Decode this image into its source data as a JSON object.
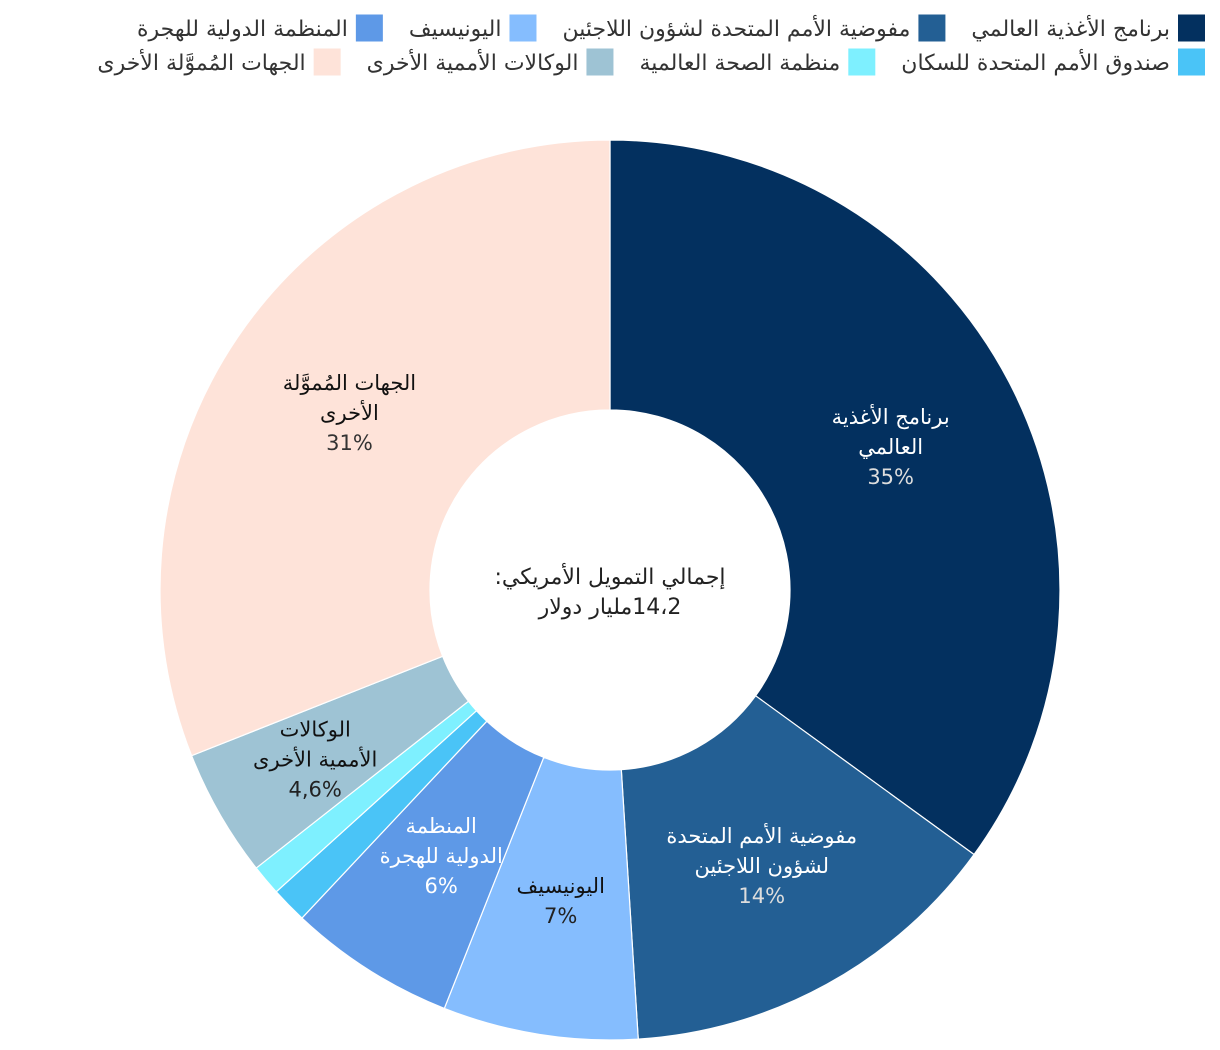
{
  "chart_data": {
    "type": "pie",
    "donut": true,
    "center_label": {
      "line1": "إجمالي التمويل الأمريكي:",
      "line2": "14،2مليار دولار"
    },
    "legend_placement": "top",
    "slices": [
      {
        "key": "wfp",
        "name": "برنامج الأغذية العالمي",
        "value": 35,
        "label_lines": [
          "برنامج الأغذية",
          "العالمي"
        ],
        "pct_label": "35%",
        "color": "#03305f",
        "text_color": "#ffffff",
        "pct_color": "#dddddd"
      },
      {
        "key": "unhcr",
        "name": "مفوضية الأمم المتحدة لشؤون اللاجئين",
        "value": 14,
        "label_lines": [
          "مفوضية الأمم المتحدة",
          "لشؤون اللاجئين"
        ],
        "pct_label": "14%",
        "color": "#235f94",
        "text_color": "#ffffff",
        "pct_color": "#dddddd"
      },
      {
        "key": "unicef",
        "name": "اليونيسيف",
        "value": 7,
        "label_lines": [
          "اليونيسيف"
        ],
        "pct_label": "7%",
        "color": "#85bdfe",
        "text_color": "#111111",
        "pct_color": "#222222"
      },
      {
        "key": "iom",
        "name": "المنظمة الدولية للهجرة",
        "value": 6,
        "label_lines": [
          "المنظمة",
          "الدولية للهجرة"
        ],
        "pct_label": "6%",
        "color": "#5e99e7",
        "text_color": "#ffffff",
        "pct_color": "#ffffff"
      },
      {
        "key": "unfpa",
        "name": "صندوق الأمم المتحدة للسكان",
        "value": 1.3,
        "label_lines": [],
        "pct_label": "",
        "color": "#4ac4f7",
        "text_color": "#111111",
        "pct_color": "#111111"
      },
      {
        "key": "who",
        "name": "منظمة الصحة العالمية",
        "value": 1.1,
        "label_lines": [],
        "pct_label": "",
        "color": "#7ef0ff",
        "text_color": "#111111",
        "pct_color": "#111111"
      },
      {
        "key": "other_un",
        "name": "الوكالات الأممية الأخرى",
        "value": 4.6,
        "label_lines": [
          "الوكالات",
          "الأممية الأخرى"
        ],
        "pct_label": "4,6%",
        "color": "#9ec3d4",
        "text_color": "#111111",
        "pct_color": "#222222"
      },
      {
        "key": "other",
        "name": "الجهات المُموَّلة الأخرى",
        "value": 31,
        "label_lines": [
          "الجهات المُموَّلة",
          "الأخرى"
        ],
        "pct_label": "31%",
        "color": "#fee3d9",
        "text_color": "#111111",
        "pct_color": "#333333"
      }
    ],
    "legend_rows": [
      [
        {
          "color": "#03305f",
          "text": "برنامج الأغذية العالمي"
        },
        {
          "color": "#235f94",
          "text": "مفوضية الأمم المتحدة لشؤون اللاجئين"
        },
        {
          "color": "#85bdfe",
          "text": "اليونيسيف"
        },
        {
          "color": "#5e99e7",
          "text": "المنظمة الدولية للهجرة"
        }
      ],
      [
        {
          "color": "#4ac4f7",
          "text": "صندوق الأمم المتحدة للسكان"
        },
        {
          "color": "#7ef0ff",
          "text": "منظمة الصحة العالمية"
        },
        {
          "color": "#9ec3d4",
          "text": "الوكالات الأممية الأخرى"
        },
        {
          "color": "#fee3d9",
          "text": "الجهات المُموَّلة الأخرى"
        }
      ]
    ]
  }
}
